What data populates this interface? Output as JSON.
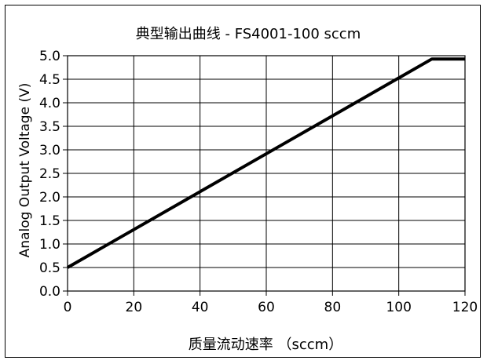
{
  "chart_data": {
    "type": "line",
    "title": "典型输出曲线 - FS4001-100 sccm",
    "xlabel": "质量流动速率 （sccm）",
    "ylabel": "Analog Output Voltage (V)",
    "xlim": [
      0,
      120
    ],
    "ylim": [
      0,
      5
    ],
    "x_ticks": [
      "0",
      "20",
      "40",
      "60",
      "80",
      "100",
      "120"
    ],
    "y_ticks": [
      "0.0",
      "0.5",
      "1.0",
      "1.5",
      "2.0",
      "2.5",
      "3.0",
      "3.5",
      "4.0",
      "4.5",
      "5.0"
    ],
    "grid": true,
    "series": [
      {
        "x": [
          0,
          110,
          120
        ],
        "y": [
          0.5,
          4.93,
          4.93
        ]
      }
    ]
  }
}
